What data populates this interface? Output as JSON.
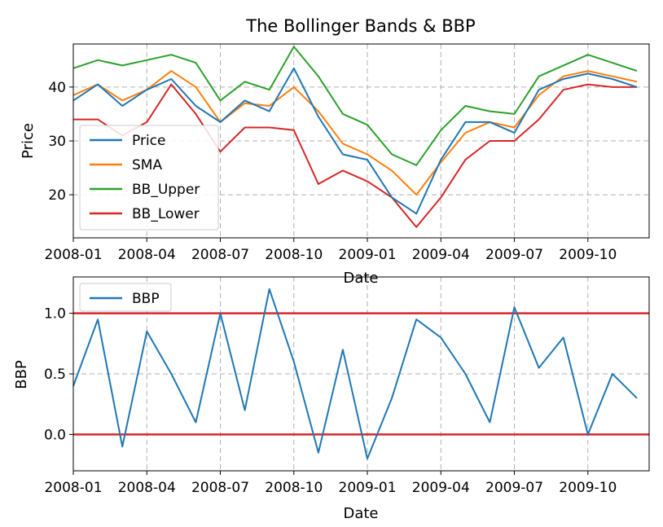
{
  "figure": {
    "title": "The Bollinger Bands & BBP"
  },
  "colors": {
    "price": "#1f77b4",
    "sma": "#ff7f0e",
    "upper": "#2ca02c",
    "lower": "#d62728",
    "bbp": "#1f77b4",
    "threshold": "#d62728",
    "grid": "#b0b0b0"
  },
  "chart_data": [
    {
      "type": "line",
      "title": "The Bollinger Bands & BBP",
      "xlabel": "Date",
      "ylabel": "Price",
      "x_ticks": [
        "2008-01",
        "2008-04",
        "2008-07",
        "2008-10",
        "2009-01",
        "2009-04",
        "2009-07",
        "2009-10"
      ],
      "y_ticks": [
        20,
        30,
        40
      ],
      "ylim": [
        12,
        48
      ],
      "grid": true,
      "legend_position": "lower-left",
      "x_dates": [
        "2008-01",
        "2008-02",
        "2008-03",
        "2008-04",
        "2008-05",
        "2008-06",
        "2008-07",
        "2008-08",
        "2008-09",
        "2008-10",
        "2008-11",
        "2008-12",
        "2009-01",
        "2009-02",
        "2009-03",
        "2009-04",
        "2009-05",
        "2009-06",
        "2009-07",
        "2009-08",
        "2009-09",
        "2009-10",
        "2009-11",
        "2009-12"
      ],
      "series": [
        {
          "name": "Price",
          "values": [
            37.5,
            40.5,
            36.5,
            39.5,
            41.5,
            36.5,
            33.5,
            37.5,
            35.5,
            43.5,
            34.5,
            27.5,
            26.5,
            19.5,
            16.5,
            26.5,
            33.5,
            33.5,
            31.5,
            39.5,
            41.5,
            42.5,
            41.5,
            40.0
          ]
        },
        {
          "name": "SMA",
          "values": [
            38.5,
            40.5,
            37.5,
            39.5,
            43.0,
            40.0,
            33.5,
            37.0,
            36.5,
            40.0,
            35.5,
            29.5,
            27.5,
            24.5,
            20.0,
            26.0,
            31.5,
            33.5,
            32.5,
            38.5,
            42.0,
            43.0,
            42.0,
            41.0
          ]
        },
        {
          "name": "BB_Upper",
          "values": [
            43.5,
            45.0,
            44.0,
            45.0,
            46.0,
            44.5,
            37.5,
            41.0,
            39.5,
            47.5,
            42.0,
            35.0,
            33.0,
            27.5,
            25.5,
            32.0,
            36.5,
            35.5,
            35.0,
            42.0,
            44.0,
            46.0,
            44.5,
            43.0
          ]
        },
        {
          "name": "BB_Lower",
          "values": [
            34.0,
            34.0,
            31.0,
            33.5,
            40.5,
            35.0,
            28.0,
            32.5,
            32.5,
            32.0,
            22.0,
            24.5,
            22.5,
            19.5,
            14.0,
            19.5,
            26.5,
            30.0,
            30.0,
            34.0,
            39.5,
            40.5,
            40.0,
            40.0
          ]
        }
      ]
    },
    {
      "type": "line",
      "title": "",
      "xlabel": "Date",
      "ylabel": "BBP",
      "x_ticks": [
        "2008-01",
        "2008-04",
        "2008-07",
        "2008-10",
        "2009-01",
        "2009-04",
        "2009-07",
        "2009-10"
      ],
      "y_ticks": [
        0.0,
        0.5,
        1.0
      ],
      "y_tick_labels": [
        "0.0",
        "0.5",
        "1.0"
      ],
      "ylim": [
        -0.3,
        1.3
      ],
      "grid": true,
      "legend_position": "upper-left",
      "x_dates": [
        "2008-01",
        "2008-02",
        "2008-03",
        "2008-04",
        "2008-05",
        "2008-06",
        "2008-07",
        "2008-08",
        "2008-09",
        "2008-10",
        "2008-11",
        "2008-12",
        "2009-01",
        "2009-02",
        "2009-03",
        "2009-04",
        "2009-05",
        "2009-06",
        "2009-07",
        "2009-08",
        "2009-09",
        "2009-10",
        "2009-11",
        "2009-12"
      ],
      "series": [
        {
          "name": "BBP",
          "values": [
            0.4,
            0.95,
            -0.1,
            0.85,
            0.5,
            0.1,
            1.0,
            0.2,
            1.2,
            0.6,
            -0.15,
            0.7,
            -0.2,
            0.3,
            0.95,
            0.8,
            0.5,
            0.1,
            1.05,
            0.55,
            0.8,
            0.0,
            0.5,
            0.3
          ]
        }
      ],
      "hlines": [
        0.0,
        1.0
      ]
    }
  ]
}
